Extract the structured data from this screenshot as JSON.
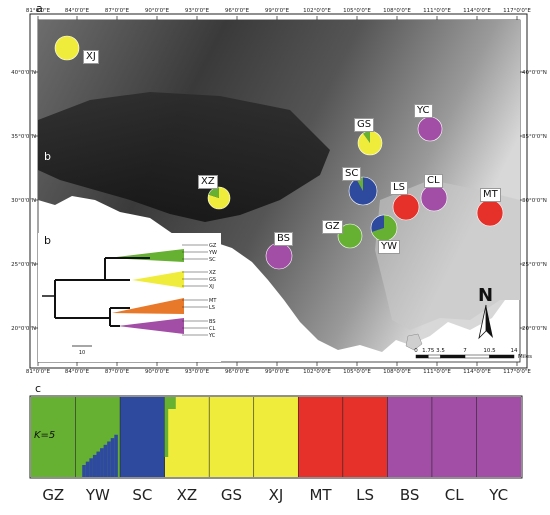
{
  "panels": {
    "a": "a",
    "b_inset": "b",
    "b_tree": "b",
    "c": "c"
  },
  "axes": {
    "x_top": [
      "81°0'0\"E",
      "84°0'0\"E",
      "87°0'0\"E",
      "90°0'0\"E",
      "93°0'0\"E",
      "96°0'0\"E",
      "99°0'0\"E",
      "102°0'0\"E",
      "105°0'0\"E",
      "108°0'0\"E",
      "111°0'0\"E",
      "114°0'0\"E",
      "117°0'0\"E"
    ],
    "x_bottom": [
      "81°0'0\"E",
      "84°0'0\"E",
      "87°0'0\"E",
      "90°0'0\"E",
      "93°0'0\"E",
      "96°0'0\"E",
      "99°0'0\"E",
      "102°0'0\"E",
      "105°0'0\"E",
      "108°0'0\"E",
      "111°0'0\"E",
      "114°0'0\"E",
      "117°0'0\"E"
    ],
    "y_left": [
      "40°0'0\"N",
      "35°0'0\"N",
      "30°0'0\"N",
      "25°0'0\"N",
      "20°0'0\"N"
    ],
    "y_right": [
      "40°0'0\"N",
      "35°0'0\"N",
      "30°0'0\"N",
      "25°0'0\"N",
      "20°0'0\"N"
    ]
  },
  "colors": {
    "green": "#66b032",
    "yellow": "#f0ec3c",
    "blue": "#2e4a9e",
    "red": "#e5312a",
    "purple": "#a34ea6",
    "orange": "#e8782a"
  },
  "populations": [
    {
      "code": "XJ",
      "comp": {
        "yellow": 1.0
      }
    },
    {
      "code": "YC",
      "comp": {
        "purple": 1.0
      }
    },
    {
      "code": "GS",
      "comp": {
        "yellow": 0.9,
        "green": 0.1
      }
    },
    {
      "code": "SC",
      "comp": {
        "blue": 0.92,
        "green": 0.08
      }
    },
    {
      "code": "CL",
      "comp": {
        "purple": 1.0
      }
    },
    {
      "code": "LS",
      "comp": {
        "red": 1.0
      }
    },
    {
      "code": "MT",
      "comp": {
        "red": 1.0
      }
    },
    {
      "code": "XZ",
      "comp": {
        "yellow": 0.8,
        "green": 0.2
      }
    },
    {
      "code": "GZ",
      "comp": {
        "green": 1.0
      }
    },
    {
      "code": "YW",
      "comp": {
        "green": 0.7,
        "blue": 0.3
      }
    },
    {
      "code": "BS",
      "comp": {
        "purple": 1.0
      }
    }
  ],
  "tree": {
    "tips": [
      "GZ",
      "YW",
      "SC",
      "XZ",
      "GS",
      "XJ",
      "MT",
      "LS",
      "BS",
      "CL",
      "YC"
    ],
    "scale_label": "10"
  },
  "scalebar": {
    "ticks": [
      "0",
      "1.75",
      "3.5",
      "7",
      "10.5",
      "14"
    ],
    "unit": "Miles"
  },
  "north_arrow": {
    "label": "N",
    "icon": "north-arrow-icon"
  },
  "structure": {
    "k_label": "K=5",
    "groups": [
      "GZ",
      "YW",
      "SC",
      "XZ",
      "GS",
      "XJ",
      "MT",
      "LS",
      "BS",
      "CL",
      "YC"
    ],
    "dominant": [
      "green",
      "green",
      "blue",
      "yellow",
      "yellow",
      "yellow",
      "red",
      "red",
      "purple",
      "purple",
      "purple"
    ]
  }
}
